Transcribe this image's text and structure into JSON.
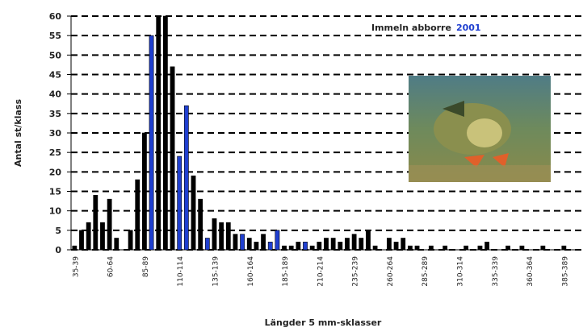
{
  "chart_data": {
    "type": "bar",
    "title": "Immeln abborre",
    "title_year": "2001",
    "y_label": "Antal st/klass",
    "x_label": "Längder 5 mm-sklasser",
    "categories": [
      "35-39",
      null,
      null,
      null,
      null,
      "60-64",
      null,
      null,
      null,
      null,
      "85-89",
      null,
      null,
      null,
      null,
      "110-114",
      null,
      null,
      null,
      null,
      "135-139",
      null,
      null,
      null,
      null,
      "160-164",
      null,
      null,
      null,
      null,
      "185-189",
      null,
      null,
      null,
      null,
      "210-214",
      null,
      null,
      null,
      null,
      "235-239",
      null,
      null,
      null,
      null,
      "260-264",
      null,
      null,
      null,
      null,
      "285-289",
      null,
      null,
      null,
      null,
      "310-314",
      null,
      null,
      null,
      null,
      "335-339",
      null,
      null,
      null,
      null,
      "360-364",
      null,
      null,
      null,
      null,
      "385-389",
      null,
      null
    ],
    "values": [
      1,
      5,
      7,
      14,
      7,
      13,
      3,
      0,
      5,
      18,
      30,
      55,
      60,
      60,
      47,
      24,
      37,
      19,
      13,
      3,
      8,
      7,
      7,
      4,
      4,
      3,
      2,
      4,
      2,
      5,
      1,
      1,
      2,
      2,
      1,
      2,
      3,
      3,
      2,
      3,
      4,
      3,
      5,
      1,
      0,
      3,
      2,
      3,
      1,
      1,
      0,
      1,
      0,
      1,
      0,
      0,
      1,
      0,
      1,
      2,
      0,
      0,
      1,
      0,
      1,
      0,
      0,
      1,
      0,
      0,
      1,
      0,
      0
    ],
    "colors": [
      "#000",
      "#000",
      "#000",
      "#000",
      "#000",
      "#000",
      "#000",
      "#000",
      "#000",
      "#000",
      "#000",
      "#1f3fd0",
      "#000",
      "#000",
      "#000",
      "#1f3fd0",
      "#1f3fd0",
      "#000",
      "#000",
      "#1f3fd0",
      "#000",
      "#000",
      "#000",
      "#000",
      "#1f3fd0",
      "#000",
      "#000",
      "#000",
      "#1f3fd0",
      "#1f3fd0",
      "#000",
      "#000",
      "#000",
      "#1f3fd0",
      "#000",
      "#000",
      "#000",
      "#000",
      "#000",
      "#000",
      "#000",
      "#000",
      "#000",
      "#000",
      "#000",
      "#000",
      "#000",
      "#000",
      "#000",
      "#000",
      "#000",
      "#000",
      "#000",
      "#000",
      "#000",
      "#000",
      "#000",
      "#000",
      "#000",
      "#000",
      "#000",
      "#000",
      "#000",
      "#000",
      "#000",
      "#000",
      "#000",
      "#000",
      "#000",
      "#000",
      "#000",
      "#000",
      "#000"
    ],
    "title_year_color": "#1f3fd0",
    "ylim": [
      0,
      60
    ],
    "yticks": [
      0,
      5,
      10,
      15,
      20,
      25,
      30,
      35,
      40,
      45,
      50,
      55,
      60
    ],
    "grid": "dashed"
  }
}
